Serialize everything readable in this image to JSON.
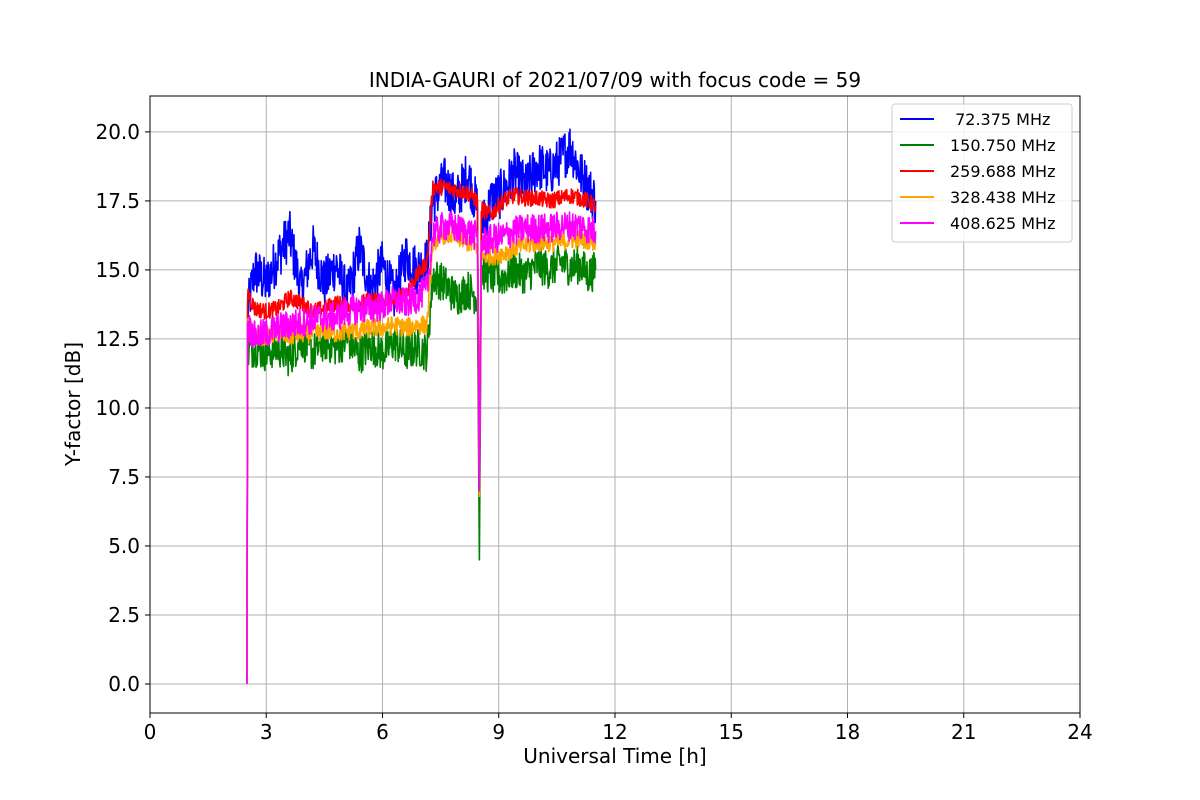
{
  "chart_data": {
    "type": "line",
    "title": "INDIA-GAURI of 2021/07/09 with focus code = 59",
    "xlabel": "Universal Time [h]",
    "ylabel": "Y-factor [dB]",
    "xlim": [
      0,
      24
    ],
    "ylim": [
      -1.05,
      21.3
    ],
    "xticks": [
      0,
      3,
      6,
      9,
      12,
      15,
      18,
      21,
      24
    ],
    "xtick_labels": [
      "0",
      "3",
      "6",
      "9",
      "12",
      "15",
      "18",
      "21",
      "24"
    ],
    "yticks": [
      0,
      2.5,
      5,
      7.5,
      10,
      12.5,
      15,
      17.5,
      20
    ],
    "ytick_labels": [
      "0.0",
      "2.5",
      "5.0",
      "7.5",
      "10.0",
      "12.5",
      "15.0",
      "17.5",
      "20.0"
    ],
    "grid": true,
    "legend_position": "top-right",
    "series": [
      {
        "name": " 72.375 MHz",
        "color": "#0000ff",
        "points": [
          [
            2.5,
            0.0
          ],
          [
            2.52,
            13.5
          ],
          [
            2.7,
            15.0
          ],
          [
            3.0,
            14.5
          ],
          [
            3.3,
            15.5
          ],
          [
            3.6,
            16.3
          ],
          [
            3.9,
            14.2
          ],
          [
            4.2,
            15.8
          ],
          [
            4.5,
            14.5
          ],
          [
            4.8,
            15.2
          ],
          [
            5.1,
            14.0
          ],
          [
            5.4,
            15.8
          ],
          [
            5.7,
            14.3
          ],
          [
            6.0,
            15.2
          ],
          [
            6.3,
            14.0
          ],
          [
            6.6,
            15.5
          ],
          [
            6.9,
            15.0
          ],
          [
            7.15,
            15.3
          ],
          [
            7.3,
            17.5
          ],
          [
            7.6,
            18.2
          ],
          [
            7.9,
            17.5
          ],
          [
            8.2,
            18.5
          ],
          [
            8.45,
            17.2
          ],
          [
            8.5,
            7.0
          ],
          [
            8.55,
            16.5
          ],
          [
            8.8,
            17.5
          ],
          [
            9.1,
            17.8
          ],
          [
            9.4,
            18.5
          ],
          [
            9.7,
            18.0
          ],
          [
            10.0,
            18.8
          ],
          [
            10.3,
            18.5
          ],
          [
            10.6,
            19.0
          ],
          [
            10.85,
            19.5
          ],
          [
            11.1,
            18.5
          ],
          [
            11.3,
            18.0
          ],
          [
            11.5,
            17.5
          ]
        ],
        "band": 0.9
      },
      {
        "name": "150.750 MHz",
        "color": "#008000",
        "points": [
          [
            2.5,
            0.0
          ],
          [
            2.52,
            12.0
          ],
          [
            2.7,
            12.2
          ],
          [
            3.0,
            12.0
          ],
          [
            3.3,
            12.2
          ],
          [
            3.6,
            11.8
          ],
          [
            3.9,
            12.5
          ],
          [
            4.2,
            12.0
          ],
          [
            4.5,
            12.4
          ],
          [
            4.8,
            12.2
          ],
          [
            5.1,
            12.5
          ],
          [
            5.4,
            11.9
          ],
          [
            5.7,
            12.3
          ],
          [
            6.0,
            12.0
          ],
          [
            6.3,
            12.4
          ],
          [
            6.6,
            12.0
          ],
          [
            6.9,
            12.2
          ],
          [
            7.15,
            12.0
          ],
          [
            7.3,
            14.8
          ],
          [
            7.6,
            14.5
          ],
          [
            7.9,
            14.0
          ],
          [
            8.2,
            14.3
          ],
          [
            8.45,
            14.0
          ],
          [
            8.5,
            4.5
          ],
          [
            8.55,
            15.0
          ],
          [
            8.8,
            14.8
          ],
          [
            9.1,
            14.7
          ],
          [
            9.4,
            15.0
          ],
          [
            9.7,
            14.8
          ],
          [
            10.0,
            15.2
          ],
          [
            10.3,
            15.0
          ],
          [
            10.6,
            15.3
          ],
          [
            10.85,
            15.1
          ],
          [
            11.1,
            15.2
          ],
          [
            11.3,
            14.8
          ],
          [
            11.5,
            15.0
          ]
        ],
        "band": 0.7
      },
      {
        "name": "259.688 MHz",
        "color": "#ff0000",
        "points": [
          [
            2.5,
            0.0
          ],
          [
            2.52,
            14.2
          ],
          [
            2.7,
            13.6
          ],
          [
            3.0,
            13.5
          ],
          [
            3.3,
            13.6
          ],
          [
            3.6,
            14.0
          ],
          [
            3.9,
            13.8
          ],
          [
            4.2,
            13.5
          ],
          [
            4.5,
            13.6
          ],
          [
            4.8,
            13.8
          ],
          [
            5.1,
            13.7
          ],
          [
            5.4,
            13.8
          ],
          [
            5.7,
            13.9
          ],
          [
            6.0,
            13.9
          ],
          [
            6.3,
            13.9
          ],
          [
            6.6,
            14.2
          ],
          [
            6.9,
            14.8
          ],
          [
            7.15,
            15.3
          ],
          [
            7.3,
            18.0
          ],
          [
            7.6,
            18.0
          ],
          [
            7.9,
            17.9
          ],
          [
            8.2,
            17.8
          ],
          [
            8.45,
            17.5
          ],
          [
            8.5,
            7.0
          ],
          [
            8.55,
            17.2
          ],
          [
            8.8,
            17.0
          ],
          [
            9.1,
            17.5
          ],
          [
            9.4,
            17.7
          ],
          [
            9.7,
            17.6
          ],
          [
            10.0,
            17.6
          ],
          [
            10.3,
            17.5
          ],
          [
            10.6,
            17.6
          ],
          [
            10.85,
            17.7
          ],
          [
            11.1,
            17.6
          ],
          [
            11.3,
            17.5
          ],
          [
            11.5,
            17.3
          ]
        ],
        "band": 0.3
      },
      {
        "name": "328.438 MHz",
        "color": "#ffa500",
        "points": [
          [
            2.5,
            0.0
          ],
          [
            2.52,
            13.0
          ],
          [
            2.7,
            12.6
          ],
          [
            3.0,
            12.6
          ],
          [
            3.3,
            12.7
          ],
          [
            3.6,
            12.6
          ],
          [
            3.9,
            12.7
          ],
          [
            4.2,
            12.7
          ],
          [
            4.5,
            12.8
          ],
          [
            4.8,
            12.7
          ],
          [
            5.1,
            12.8
          ],
          [
            5.4,
            12.8
          ],
          [
            5.7,
            12.9
          ],
          [
            6.0,
            12.9
          ],
          [
            6.3,
            13.0
          ],
          [
            6.6,
            12.9
          ],
          [
            6.9,
            13.0
          ],
          [
            7.15,
            13.0
          ],
          [
            7.3,
            16.0
          ],
          [
            7.6,
            16.3
          ],
          [
            7.9,
            16.2
          ],
          [
            8.2,
            16.0
          ],
          [
            8.45,
            15.8
          ],
          [
            8.5,
            6.8
          ],
          [
            8.55,
            15.5
          ],
          [
            8.8,
            15.5
          ],
          [
            9.1,
            15.6
          ],
          [
            9.4,
            15.8
          ],
          [
            9.7,
            15.9
          ],
          [
            10.0,
            16.0
          ],
          [
            10.3,
            16.0
          ],
          [
            10.6,
            16.0
          ],
          [
            10.85,
            16.1
          ],
          [
            11.1,
            16.1
          ],
          [
            11.3,
            16.1
          ],
          [
            11.5,
            16.0
          ]
        ],
        "band": 0.35
      },
      {
        "name": "408.625 MHz",
        "color": "#ff00ff",
        "points": [
          [
            2.5,
            0.0
          ],
          [
            2.52,
            13.0
          ],
          [
            2.7,
            12.6
          ],
          [
            3.0,
            12.7
          ],
          [
            3.3,
            12.9
          ],
          [
            3.6,
            13.0
          ],
          [
            3.9,
            13.1
          ],
          [
            4.2,
            13.2
          ],
          [
            4.5,
            13.3
          ],
          [
            4.8,
            13.3
          ],
          [
            5.1,
            13.5
          ],
          [
            5.4,
            13.6
          ],
          [
            5.7,
            13.6
          ],
          [
            6.0,
            13.7
          ],
          [
            6.3,
            13.9
          ],
          [
            6.6,
            13.8
          ],
          [
            6.9,
            14.0
          ],
          [
            7.15,
            14.3
          ],
          [
            7.3,
            16.3
          ],
          [
            7.6,
            16.6
          ],
          [
            7.9,
            16.5
          ],
          [
            8.2,
            16.4
          ],
          [
            8.45,
            16.2
          ],
          [
            8.5,
            7.0
          ],
          [
            8.55,
            16.0
          ],
          [
            8.8,
            16.1
          ],
          [
            9.1,
            16.2
          ],
          [
            9.4,
            16.4
          ],
          [
            9.7,
            16.5
          ],
          [
            10.0,
            16.5
          ],
          [
            10.3,
            16.5
          ],
          [
            10.6,
            16.6
          ],
          [
            10.85,
            16.6
          ],
          [
            11.1,
            16.6
          ],
          [
            11.3,
            16.5
          ],
          [
            11.5,
            16.4
          ]
        ],
        "band": 0.55
      }
    ]
  }
}
